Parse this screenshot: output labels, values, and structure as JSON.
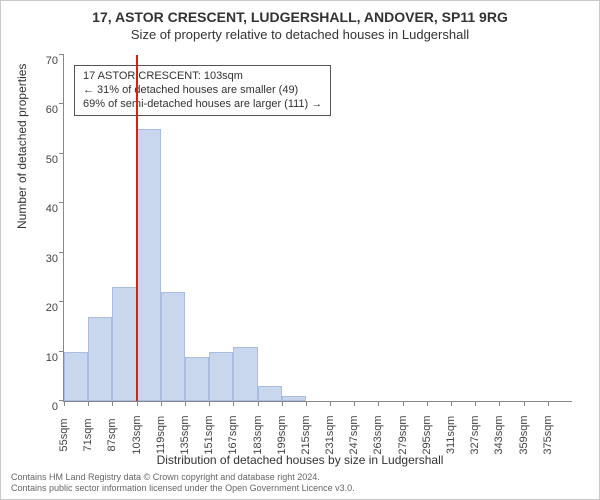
{
  "type": "histogram",
  "title_line1": "17, ASTOR CRESCENT, LUDGERSHALL, ANDOVER, SP11 9RG",
  "title_line2": "Size of property relative to detached houses in Ludgershall",
  "ylabel": "Number of detached properties",
  "xlabel": "Distribution of detached houses by size in Ludgershall",
  "ylim": [
    0,
    70
  ],
  "ytick_step": 10,
  "bin_start": 55,
  "bin_width": 16,
  "bin_count": 21,
  "bar_color": "#c9d7ee",
  "bar_border_color": "#a9bde0",
  "background_color": "#ffffff",
  "axis_color": "#888888",
  "ref_value_sqm": 103,
  "ref_color": "#d91e1e",
  "bin_labels": [
    "55sqm",
    "71sqm",
    "87sqm",
    "103sqm",
    "119sqm",
    "135sqm",
    "151sqm",
    "167sqm",
    "183sqm",
    "199sqm",
    "215sqm",
    "231sqm",
    "247sqm",
    "263sqm",
    "279sqm",
    "295sqm",
    "311sqm",
    "327sqm",
    "343sqm",
    "359sqm",
    "375sqm"
  ],
  "counts": [
    10,
    17,
    23,
    55,
    22,
    9,
    10,
    11,
    3,
    1,
    0,
    0,
    0,
    0,
    0,
    0,
    0,
    0,
    0,
    0,
    0
  ],
  "callout": {
    "line1": "17 ASTOR CRESCENT: 103sqm",
    "line2": "← 31% of detached houses are smaller (49)",
    "line3": "69% of semi-detached houses are larger (111) →"
  },
  "footer": {
    "line1": "Contains HM Land Registry data © Crown copyright and database right 2024.",
    "line2": "Contains public sector information licensed under the Open Government Licence v3.0."
  },
  "label_fontsize": 12,
  "tick_fontsize": 11,
  "title_fontsize": 14
}
